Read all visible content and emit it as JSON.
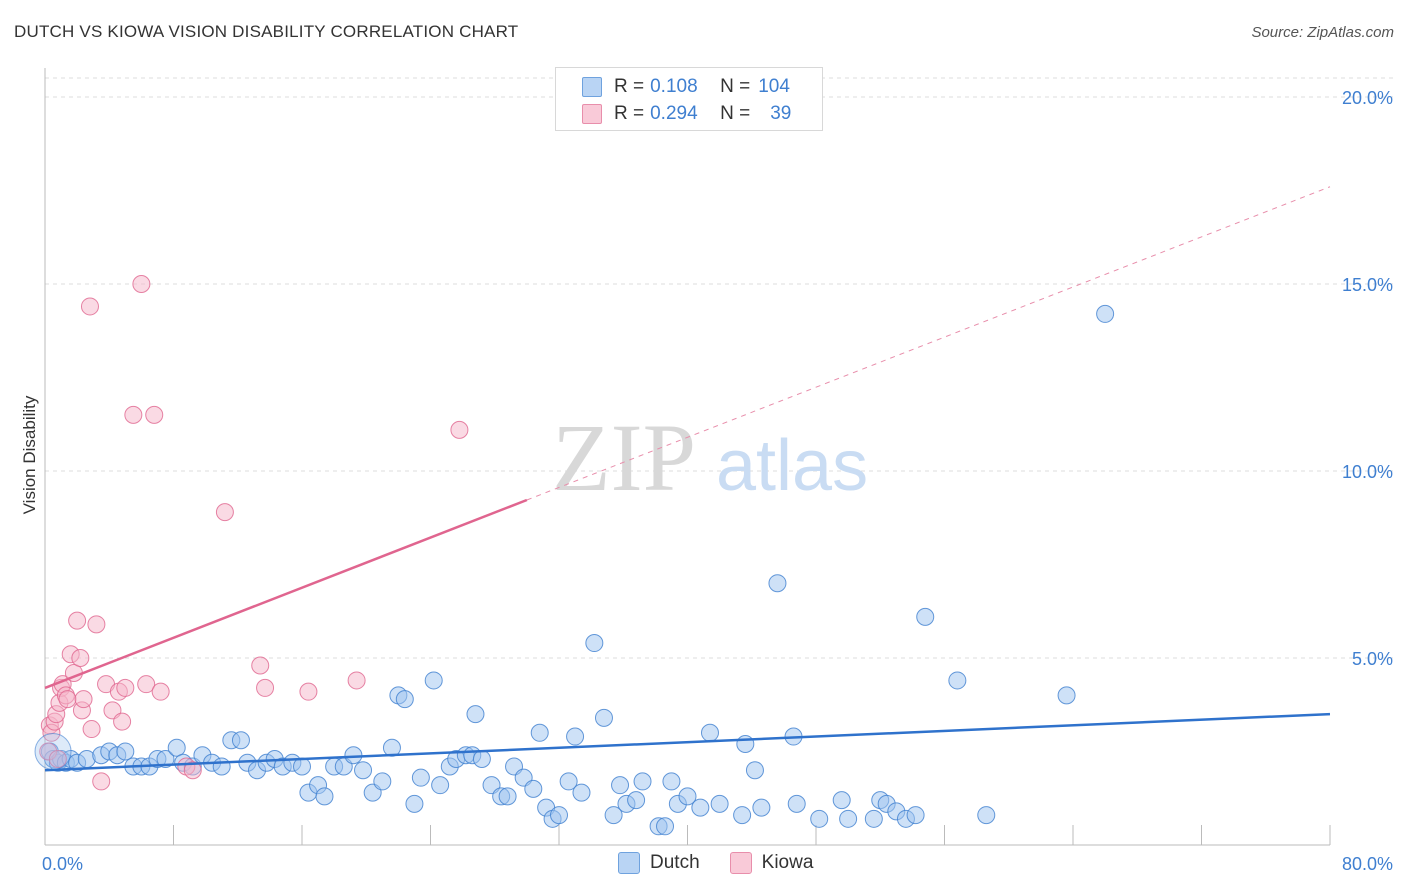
{
  "title": "DUTCH VS KIOWA VISION DISABILITY CORRELATION CHART",
  "source": "Source: ZipAtlas.com",
  "watermark": {
    "zip": "ZIP",
    "atlas": "atlas"
  },
  "legend_top": {
    "rows": [
      {
        "r_label": "R =",
        "r_value": "0.108",
        "n_label": "N =",
        "n_value": "104",
        "color": "#9ec3ef"
      },
      {
        "r_label": "R =",
        "r_value": "0.294",
        "n_label": "N =",
        "n_value": "39",
        "color": "#f5b6c9"
      }
    ]
  },
  "legend_bottom": [
    {
      "label": "Dutch",
      "color": "#9ec3ef"
    },
    {
      "label": "Kiowa",
      "color": "#f5b6c9"
    }
  ],
  "chart_data": {
    "type": "scatter",
    "title": "DUTCH VS KIOWA VISION DISABILITY CORRELATION CHART",
    "xlabel": "",
    "ylabel": "Vision Disability",
    "xlim": [
      0,
      80
    ],
    "ylim": [
      0,
      20.5
    ],
    "x_tick_labels": [
      "0.0%",
      "80.0%"
    ],
    "y_ticks": [
      5,
      10,
      15,
      20
    ],
    "y_tick_labels": [
      "5.0%",
      "10.0%",
      "15.0%",
      "20.0%"
    ],
    "grid": "horizontal dashed",
    "legend_position": "top-center",
    "series": [
      {
        "name": "Dutch",
        "color": "#3f7fd0",
        "fill": "#9ec3ef",
        "trend": {
          "x": [
            0,
            80
          ],
          "y": [
            2.0,
            3.5
          ],
          "dashed_from": null
        },
        "points": [
          [
            0.3,
            2.5
          ],
          [
            0.5,
            2.3
          ],
          [
            0.8,
            2.2
          ],
          [
            1.0,
            2.3
          ],
          [
            1.3,
            2.2
          ],
          [
            1.6,
            2.3
          ],
          [
            2.0,
            2.2
          ],
          [
            2.6,
            2.3
          ],
          [
            3.5,
            2.4
          ],
          [
            4.0,
            2.5
          ],
          [
            4.5,
            2.4
          ],
          [
            5.0,
            2.5
          ],
          [
            5.5,
            2.1
          ],
          [
            6.0,
            2.1
          ],
          [
            6.5,
            2.1
          ],
          [
            7.0,
            2.3
          ],
          [
            7.5,
            2.3
          ],
          [
            8.2,
            2.6
          ],
          [
            8.6,
            2.2
          ],
          [
            9.2,
            2.1
          ],
          [
            9.8,
            2.4
          ],
          [
            10.4,
            2.2
          ],
          [
            11.0,
            2.1
          ],
          [
            11.6,
            2.8
          ],
          [
            12.2,
            2.8
          ],
          [
            12.6,
            2.2
          ],
          [
            13.2,
            2.0
          ],
          [
            13.8,
            2.2
          ],
          [
            14.3,
            2.3
          ],
          [
            14.8,
            2.1
          ],
          [
            15.4,
            2.2
          ],
          [
            16.0,
            2.1
          ],
          [
            16.4,
            1.4
          ],
          [
            17.0,
            1.6
          ],
          [
            17.4,
            1.3
          ],
          [
            18.0,
            2.1
          ],
          [
            18.6,
            2.1
          ],
          [
            19.2,
            2.4
          ],
          [
            19.8,
            2.0
          ],
          [
            20.4,
            1.4
          ],
          [
            21.0,
            1.7
          ],
          [
            21.6,
            2.6
          ],
          [
            22.0,
            4.0
          ],
          [
            22.4,
            3.9
          ],
          [
            23.0,
            1.1
          ],
          [
            23.4,
            1.8
          ],
          [
            24.2,
            4.4
          ],
          [
            24.6,
            1.6
          ],
          [
            25.2,
            2.1
          ],
          [
            25.6,
            2.3
          ],
          [
            26.2,
            2.4
          ],
          [
            26.6,
            2.4
          ],
          [
            26.8,
            3.5
          ],
          [
            27.2,
            2.3
          ],
          [
            27.8,
            1.6
          ],
          [
            28.4,
            1.3
          ],
          [
            28.8,
            1.3
          ],
          [
            29.2,
            2.1
          ],
          [
            29.8,
            1.8
          ],
          [
            30.4,
            1.5
          ],
          [
            30.8,
            3.0
          ],
          [
            31.2,
            1.0
          ],
          [
            31.6,
            0.7
          ],
          [
            32.0,
            0.8
          ],
          [
            32.6,
            1.7
          ],
          [
            33.0,
            2.9
          ],
          [
            33.4,
            1.4
          ],
          [
            34.2,
            5.4
          ],
          [
            34.8,
            3.4
          ],
          [
            35.4,
            0.8
          ],
          [
            35.8,
            1.6
          ],
          [
            36.2,
            1.1
          ],
          [
            36.8,
            1.2
          ],
          [
            37.2,
            1.7
          ],
          [
            38.2,
            0.5
          ],
          [
            38.6,
            0.5
          ],
          [
            39.0,
            1.7
          ],
          [
            39.4,
            1.1
          ],
          [
            40.0,
            1.3
          ],
          [
            40.8,
            1.0
          ],
          [
            41.4,
            3.0
          ],
          [
            42.0,
            1.1
          ],
          [
            43.4,
            0.8
          ],
          [
            43.6,
            2.7
          ],
          [
            44.2,
            2.0
          ],
          [
            44.6,
            1.0
          ],
          [
            45.6,
            7.0
          ],
          [
            46.6,
            2.9
          ],
          [
            46.8,
            1.1
          ],
          [
            48.2,
            0.7
          ],
          [
            49.6,
            1.2
          ],
          [
            50.0,
            0.7
          ],
          [
            51.6,
            0.7
          ],
          [
            52.0,
            1.2
          ],
          [
            52.4,
            1.1
          ],
          [
            53.0,
            0.9
          ],
          [
            53.6,
            0.7
          ],
          [
            54.2,
            0.8
          ],
          [
            54.8,
            6.1
          ],
          [
            56.8,
            4.4
          ],
          [
            58.6,
            0.8
          ],
          [
            63.6,
            4.0
          ],
          [
            66.0,
            14.2
          ],
          [
            33.9,
            19.4
          ]
        ]
      },
      {
        "name": "Kiowa",
        "color": "#e0658f",
        "fill": "#f5b6c9",
        "trend": {
          "x": [
            0,
            80
          ],
          "y": [
            4.2,
            17.6
          ],
          "solid_until_x": 30
        },
        "points": [
          [
            0.2,
            2.5
          ],
          [
            0.3,
            3.2
          ],
          [
            0.4,
            3.0
          ],
          [
            0.6,
            3.3
          ],
          [
            0.7,
            3.5
          ],
          [
            0.9,
            3.8
          ],
          [
            1.0,
            4.2
          ],
          [
            1.1,
            4.3
          ],
          [
            1.3,
            4.0
          ],
          [
            1.4,
            3.9
          ],
          [
            1.6,
            5.1
          ],
          [
            1.8,
            4.6
          ],
          [
            2.0,
            6.0
          ],
          [
            2.2,
            5.0
          ],
          [
            2.3,
            3.6
          ],
          [
            2.4,
            3.9
          ],
          [
            2.8,
            14.4
          ],
          [
            2.9,
            3.1
          ],
          [
            3.2,
            5.9
          ],
          [
            3.5,
            1.7
          ],
          [
            3.8,
            4.3
          ],
          [
            4.2,
            3.6
          ],
          [
            4.6,
            4.1
          ],
          [
            4.8,
            3.3
          ],
          [
            5.0,
            4.2
          ],
          [
            5.5,
            11.5
          ],
          [
            6.0,
            15.0
          ],
          [
            6.3,
            4.3
          ],
          [
            6.8,
            11.5
          ],
          [
            7.2,
            4.1
          ],
          [
            8.8,
            2.1
          ],
          [
            9.2,
            2.0
          ],
          [
            11.2,
            8.9
          ],
          [
            13.4,
            4.8
          ],
          [
            13.7,
            4.2
          ],
          [
            16.4,
            4.1
          ],
          [
            19.4,
            4.4
          ],
          [
            25.8,
            11.1
          ],
          [
            0.8,
            2.3
          ]
        ]
      }
    ]
  }
}
